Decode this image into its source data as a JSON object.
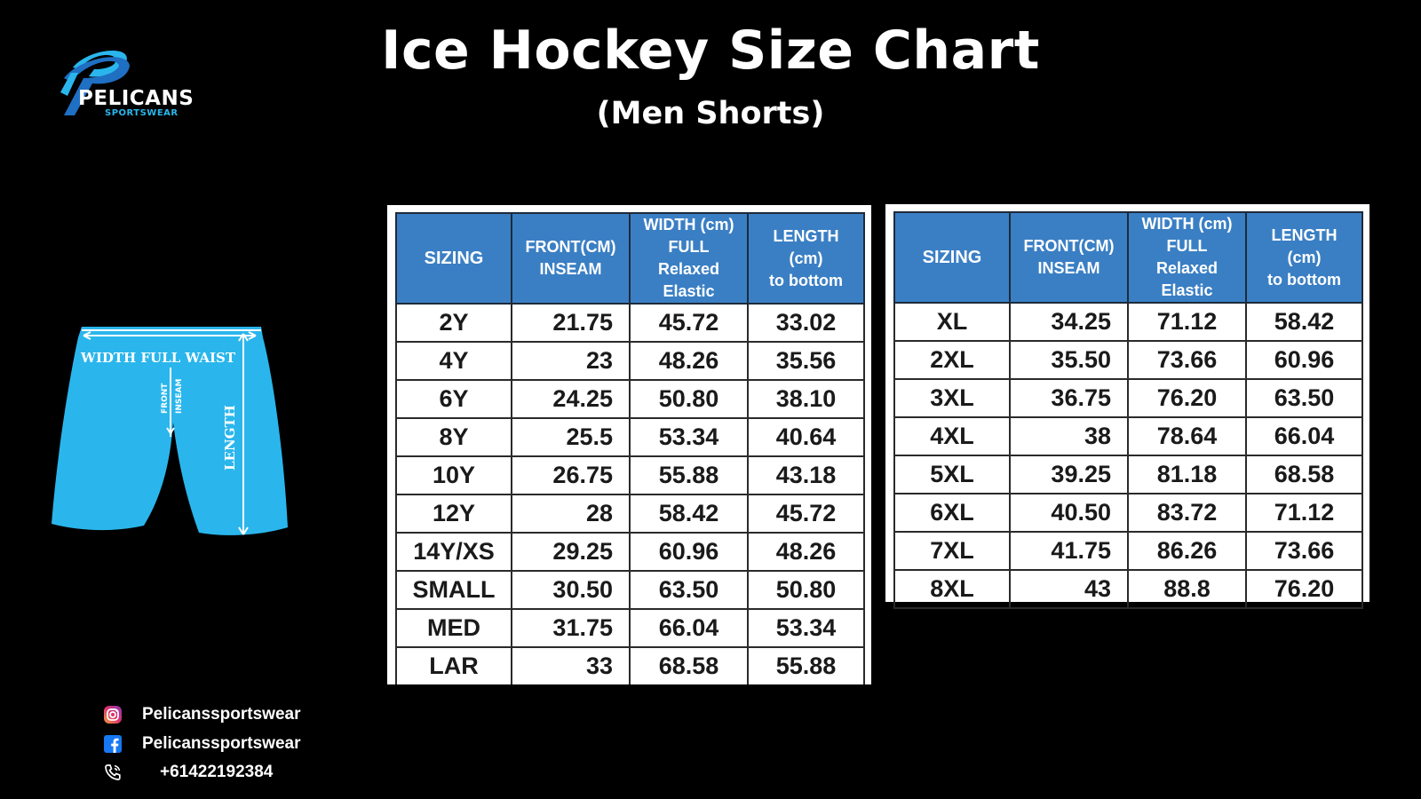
{
  "header": {
    "title": "Ice Hockey Size Chart",
    "subtitle": "(Men Shorts)"
  },
  "logo": {
    "name": "PELICANS",
    "tagline": "SPORTSWEAR",
    "colors": {
      "primary": "#2ab6ec",
      "secondary": "#1f6fc2"
    }
  },
  "diagram": {
    "width_label": "WIDTH FULL WAIST",
    "front_label": "FRONT",
    "inseam_label": "INSEAM",
    "length_label": "LENGTH",
    "color": "#2ab6ec"
  },
  "table_headers": {
    "sizing": "SIZING",
    "front_line1": "FRONT(CM)",
    "front_line2": "INSEAM",
    "width_line1": "WIDTH (cm)",
    "width_line2": "FULL",
    "width_line3": "Relaxed Elastic",
    "length_line1": "LENGTH",
    "length_line2": "(cm)",
    "length_line3": "to bottom"
  },
  "table_left": [
    [
      "2Y",
      "21.75",
      "45.72",
      "33.02"
    ],
    [
      "4Y",
      "23",
      "48.26",
      "35.56"
    ],
    [
      "6Y",
      "24.25",
      "50.80",
      "38.10"
    ],
    [
      "8Y",
      "25.5",
      "53.34",
      "40.64"
    ],
    [
      "10Y",
      "26.75",
      "55.88",
      "43.18"
    ],
    [
      "12Y",
      "28",
      "58.42",
      "45.72"
    ],
    [
      "14Y/XS",
      "29.25",
      "60.96",
      "48.26"
    ],
    [
      "SMALL",
      "30.50",
      "63.50",
      "50.80"
    ],
    [
      "MED",
      "31.75",
      "66.04",
      "53.34"
    ],
    [
      "LAR",
      "33",
      "68.58",
      "55.88"
    ]
  ],
  "table_right": [
    [
      "XL",
      "34.25",
      "71.12",
      "58.42"
    ],
    [
      "2XL",
      "35.50",
      "73.66",
      "60.96"
    ],
    [
      "3XL",
      "36.75",
      "76.20",
      "63.50"
    ],
    [
      "4XL",
      "38",
      "78.64",
      "66.04"
    ],
    [
      "5XL",
      "39.25",
      "81.18",
      "68.58"
    ],
    [
      "6XL",
      "40.50",
      "83.72",
      "71.12"
    ],
    [
      "7XL",
      "41.75",
      "86.26",
      "73.66"
    ],
    [
      "8XL",
      "43",
      "88.8",
      "76.20"
    ]
  ],
  "contact": {
    "instagram": {
      "icon": "instagram-icon",
      "label": "Pelicanssportswear"
    },
    "facebook": {
      "icon": "facebook-icon",
      "label": "Pelicanssportswear"
    },
    "phone": {
      "icon": "phone-icon",
      "label": "+61422192384"
    }
  },
  "colors": {
    "header_blue": "#3a7fc4",
    "background": "#000000"
  }
}
